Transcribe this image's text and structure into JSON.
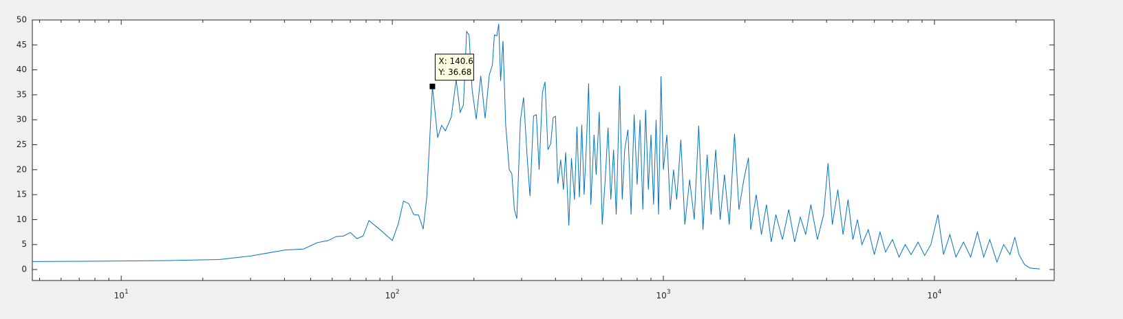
{
  "chart_data": {
    "type": "line",
    "log_x": true,
    "color": "#0072bd",
    "xlim": [
      4.7,
      27650
    ],
    "ylim": [
      -2.2,
      50
    ],
    "xticks": [
      {
        "value": 10,
        "label": "10^1"
      },
      {
        "value": 100,
        "label": "10^2"
      },
      {
        "value": 1000,
        "label": "10^3"
      },
      {
        "value": 10000,
        "label": "10^4"
      }
    ],
    "yticks": [
      0,
      5,
      10,
      15,
      20,
      25,
      30,
      35,
      40,
      45,
      50
    ],
    "x": [
      4.7,
      10,
      15,
      23,
      30,
      40,
      47,
      53,
      58,
      62,
      66,
      70,
      74,
      78,
      82,
      90,
      100,
      105,
      110,
      115,
      120,
      125,
      130,
      134,
      140.6,
      147,
      152,
      157,
      165,
      172,
      178,
      183,
      188,
      192,
      197,
      204,
      212,
      220,
      228,
      234,
      238,
      243,
      247,
      251,
      256,
      262,
      270,
      276,
      282,
      288,
      297,
      305,
      314,
      322,
      332,
      340,
      348,
      358,
      366,
      375,
      384,
      392,
      400,
      408,
      418,
      428,
      436,
      448,
      458,
      470,
      480,
      490,
      500,
      510,
      520,
      530,
      540,
      555,
      565,
      580,
      595,
      610,
      625,
      640,
      655,
      670,
      690,
      705,
      720,
      740,
      760,
      780,
      800,
      820,
      840,
      860,
      880,
      900,
      920,
      940,
      960,
      980,
      1000,
      1030,
      1060,
      1090,
      1120,
      1160,
      1200,
      1250,
      1300,
      1350,
      1400,
      1450,
      1500,
      1560,
      1620,
      1680,
      1750,
      1830,
      1900,
      1980,
      2060,
      2100,
      2200,
      2300,
      2400,
      2500,
      2600,
      2750,
      2900,
      3050,
      3200,
      3350,
      3500,
      3700,
      3900,
      4050,
      4200,
      4400,
      4600,
      4800,
      5000,
      5200,
      5400,
      5700,
      6000,
      6300,
      6600,
      7000,
      7400,
      7800,
      8200,
      8700,
      9200,
      9700,
      10300,
      10800,
      11400,
      12000,
      12800,
      13600,
      14400,
      15200,
      16000,
      17000,
      18000,
      19000,
      19800,
      20500,
      21500,
      22500,
      24500
    ],
    "values": [
      1.6,
      1.7,
      1.8,
      2.0,
      2.7,
      3.9,
      4.1,
      5.4,
      5.8,
      6.6,
      6.7,
      7.4,
      6.2,
      6.7,
      9.8,
      8.0,
      5.8,
      9.0,
      13.7,
      13.2,
      11.0,
      10.9,
      8.1,
      14.5,
      36.68,
      26.4,
      28.9,
      27.8,
      30.5,
      38.0,
      31.5,
      33.0,
      47.7,
      47.0,
      36.0,
      30.1,
      38.8,
      30.3,
      39.0,
      41.0,
      47.0,
      46.8,
      49.2,
      37.8,
      45.8,
      29.0,
      20.0,
      19.2,
      12.0,
      10.2,
      30.0,
      34.5,
      23.0,
      14.7,
      30.8,
      31.0,
      20.0,
      35.5,
      37.6,
      24.0,
      25.2,
      30.4,
      30.7,
      17.2,
      22.0,
      16.0,
      23.5,
      8.8,
      22.3,
      14.0,
      28.6,
      14.5,
      29.0,
      15.0,
      25.0,
      37.3,
      13.0,
      27.0,
      19.0,
      31.6,
      9.0,
      18.0,
      28.4,
      14.0,
      24.0,
      11.0,
      36.8,
      14.0,
      24.0,
      28.0,
      11.0,
      31.0,
      17.0,
      30.0,
      12.0,
      32.0,
      16.0,
      27.0,
      13.0,
      30.0,
      11.0,
      38.7,
      20.0,
      27.0,
      12.0,
      20.0,
      14.0,
      26.0,
      9.0,
      18.0,
      10.0,
      28.8,
      8.0,
      23.0,
      11.0,
      24.0,
      10.0,
      19.0,
      9.0,
      27.2,
      12.0,
      18.0,
      22.4,
      8.0,
      15.0,
      7.0,
      13.0,
      5.5,
      11.0,
      6.0,
      12.0,
      5.5,
      10.5,
      7.0,
      13.0,
      6.0,
      11.0,
      21.3,
      9.0,
      16.0,
      7.0,
      14.0,
      6.0,
      10.0,
      5.0,
      8.0,
      3.0,
      7.5,
      3.5,
      6.0,
      2.5,
      5.0,
      3.0,
      5.5,
      2.8,
      5.0,
      11.0,
      3.0,
      7.0,
      2.5,
      5.5,
      2.5,
      7.5,
      2.5,
      6.0,
      1.5,
      5.0,
      3.0,
      6.5,
      3.0,
      1.0,
      0.3,
      0.1
    ],
    "datatip": {
      "x": 140.6,
      "y": 36.68,
      "x_label": "X: 140.6",
      "y_label": "Y: 36.68"
    }
  }
}
